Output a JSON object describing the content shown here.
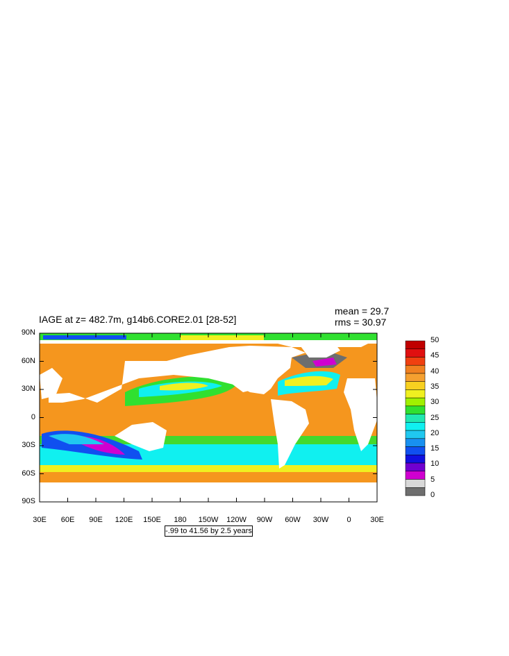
{
  "title": "IAGE at z= 482.7m, g14b6.CORE2.01 [28-52]",
  "stats": {
    "mean": "mean = 29.7",
    "rms": "rms = 30.97"
  },
  "contour_info": "-.99 to 41.56 by 2.5 years",
  "lat_labels": [
    "90N",
    "60N",
    "30N",
    "0",
    "30S",
    "60S",
    "90S"
  ],
  "lon_labels": [
    "30E",
    "60E",
    "90E",
    "120E",
    "150E",
    "180",
    "150W",
    "120W",
    "90W",
    "60W",
    "30W",
    "0",
    "30E"
  ],
  "colorbar": {
    "labels": [
      "50",
      "45",
      "40",
      "35",
      "30",
      "25",
      "20",
      "15",
      "10",
      "5",
      "0"
    ],
    "colors_top_to_bottom": [
      "#c00000",
      "#e01010",
      "#f04010",
      "#f08020",
      "#f5a030",
      "#f8d020",
      "#f0f020",
      "#a0f000",
      "#30e030",
      "#20e8b0",
      "#10f0f0",
      "#20c8f0",
      "#1890f0",
      "#1050f0",
      "#1010e0",
      "#7000d0",
      "#d000d0",
      "#d8d8d8",
      "#6e6e6e"
    ]
  },
  "colors": {
    "ocean_base": "#f5961e",
    "land": "#ffffff"
  }
}
